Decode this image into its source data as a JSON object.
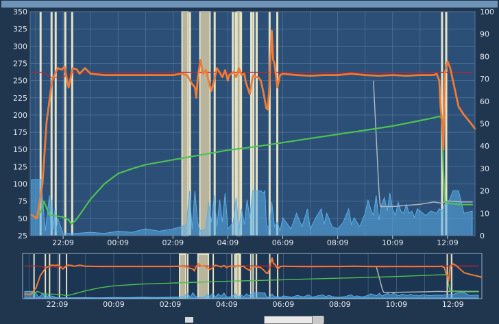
{
  "chart_data": [
    {
      "type": "line",
      "name": "main-chart",
      "left_ticks": [
        "25",
        "50",
        "75",
        "100",
        "125",
        "150",
        "175",
        "200",
        "225",
        "250",
        "275",
        "300",
        "325",
        "350"
      ],
      "right_ticks": [
        "0",
        "10",
        "20",
        "30",
        "40",
        "50",
        "60",
        "70",
        "80",
        "90",
        "100"
      ],
      "x_ticks": [
        "22:09",
        "00:09",
        "02:09",
        "04:09",
        "06:09",
        "08:09",
        "10:09",
        "12:09"
      ],
      "ylim_left": [
        25,
        350
      ],
      "ylim_right": [
        0,
        100
      ],
      "xlim": [
        -0.2,
        16.0
      ],
      "grid": true,
      "colors": {
        "background": "#2b4f77",
        "grid": "#8aa2bc",
        "glucose_orange": "#ef7b35",
        "glucose_green": "#4fc24f",
        "setpoint_red": "#b8252f",
        "area_blue": "#5aaee8",
        "grey_line": "#aeb6bf",
        "bands": "#e6e2c4"
      },
      "series": [
        {
          "key": "orange",
          "axis": "left",
          "x": [
            -0.15,
            0.05,
            0.25,
            0.4,
            0.6,
            0.8,
            0.95,
            1.05,
            1.2,
            1.35,
            1.5,
            1.6,
            1.8,
            2,
            2.5,
            3,
            4,
            4.5,
            5,
            5.3,
            5.5,
            5.55,
            5.7,
            5.8,
            5.85,
            5.9,
            6,
            6.1,
            6.2,
            6.3,
            6.4,
            6.5,
            6.6,
            6.7,
            6.8,
            6.9,
            7,
            7.05,
            7.2,
            7.3,
            7.4,
            7.5,
            7.6,
            7.65,
            7.7,
            7.8,
            7.9,
            7.95,
            8,
            8.1,
            8.2,
            8.3,
            8.4,
            8.45,
            8.5,
            8.55,
            8.6,
            8.65,
            8.7,
            8.8,
            8.9,
            9,
            9.5,
            10,
            10.5,
            11,
            11.5,
            12,
            12.5,
            13,
            13.5,
            14,
            14.3,
            14.5,
            14.6,
            14.7,
            14.75,
            14.8,
            14.85,
            14.9,
            15,
            15.1,
            15.25,
            15.4,
            15.6,
            15.85,
            16
          ],
          "y": [
            55,
            50,
            100,
            190,
            250,
            268,
            266,
            270,
            240,
            268,
            266,
            260,
            268,
            260,
            258,
            258,
            258,
            258,
            258,
            260,
            258,
            255,
            245,
            240,
            225,
            252,
            280,
            260,
            265,
            250,
            235,
            250,
            268,
            262,
            255,
            265,
            250,
            258,
            262,
            255,
            268,
            258,
            260,
            248,
            242,
            230,
            255,
            258,
            255,
            255,
            250,
            232,
            210,
            208,
            232,
            282,
            322,
            280,
            275,
            240,
            258,
            260,
            258,
            257,
            258,
            258,
            260,
            258,
            257,
            258,
            257,
            258,
            258,
            258,
            260,
            250,
            210,
            190,
            150,
            260,
            278,
            268,
            240,
            212,
            200,
            188,
            180
          ]
        },
        {
          "key": "green",
          "axis": "left",
          "x": [
            -0.15,
            0,
            0.2,
            0.3,
            0.5,
            1,
            1.2,
            1.3,
            1.45,
            1.6,
            2,
            2.5,
            3,
            3.5,
            4,
            5,
            6,
            7,
            8,
            9,
            10,
            11,
            12,
            13,
            14,
            14.5,
            14.7,
            14.8,
            14.85,
            14.9,
            15,
            15.5,
            15.9
          ],
          "y": [
            55,
            52,
            60,
            75,
            55,
            52,
            48,
            42,
            47,
            55,
            78,
            100,
            115,
            122,
            128,
            135,
            142,
            149,
            154,
            160,
            166,
            172,
            178,
            184,
            192,
            196,
            198,
            195,
            120,
            75,
            72,
            70,
            70
          ]
        },
        {
          "key": "setpoint",
          "axis": "left",
          "x": [
            -0.15,
            0.3,
            0.5,
            1,
            1.3,
            15.9
          ],
          "y": [
            262,
            262,
            255,
            255,
            262,
            262
          ]
        },
        {
          "key": "grey",
          "axis": "right",
          "x": [
            12.3,
            12.42,
            12.5,
            12.55,
            13,
            13.5,
            14,
            14.5,
            14.8,
            15,
            15.5,
            15.9
          ],
          "y": [
            69,
            40,
            20,
            13,
            13,
            13.5,
            14,
            15,
            14.5,
            15.5,
            15,
            15
          ]
        },
        {
          "key": "blue",
          "axis": "right",
          "x": [
            -0.15,
            0,
            0.1,
            0.2,
            0.35,
            0.5,
            0.55,
            0.6,
            0.65,
            0.7,
            0.75,
            0.8,
            1,
            1.5,
            2,
            2.5,
            3,
            3.5,
            4,
            4.5,
            5,
            5.3,
            5.5,
            5.6,
            5.7,
            5.8,
            5.9,
            6,
            6.2,
            6.3,
            6.4,
            6.5,
            6.6,
            6.7,
            6.8,
            6.9,
            7,
            7.2,
            7.3,
            7.4,
            7.5,
            7.6,
            7.7,
            7.8,
            7.9,
            8,
            8.1,
            8.2,
            8.3,
            8.35,
            8.4,
            8.5,
            8.6,
            8.7,
            8.8,
            8.9,
            9,
            9.3,
            9.5,
            9.7,
            9.9,
            10,
            10.2,
            10.4,
            10.5,
            10.6,
            10.8,
            11,
            11.2,
            11.4,
            11.5,
            11.6,
            11.8,
            12,
            12.1,
            12.2,
            12.3,
            12.4,
            12.5,
            12.6,
            12.7,
            12.8,
            12.9,
            13,
            13.1,
            13.2,
            13.3,
            13.4,
            13.5,
            13.6,
            13.7,
            13.8,
            13.9,
            14,
            14.2,
            14.4,
            14.6,
            14.7,
            14.8,
            14.9,
            15,
            15.2,
            15.4,
            15.6,
            15.9
          ],
          "y": [
            25,
            25,
            25,
            25,
            2,
            18,
            2,
            16,
            3,
            12,
            2,
            8,
            1,
            1,
            1.5,
            1,
            2,
            1.5,
            3,
            2,
            3,
            4,
            5,
            20,
            3,
            20,
            6,
            2,
            3,
            15,
            6,
            18,
            4,
            16,
            6,
            19,
            3,
            6,
            17,
            2,
            12,
            5,
            16,
            8,
            20,
            20,
            20,
            20,
            19,
            20,
            5,
            3,
            15,
            4,
            6,
            2,
            8,
            3,
            10,
            4,
            12,
            3,
            8,
            12,
            5,
            10,
            4,
            3,
            6,
            12,
            5,
            8,
            4,
            10,
            16,
            12,
            9,
            18,
            7,
            14,
            17,
            11,
            19,
            12,
            9,
            15,
            11,
            10,
            14,
            10,
            11,
            8,
            12,
            11,
            9,
            11,
            10,
            12,
            11,
            14,
            14,
            20,
            20,
            10,
            11
          ]
        }
      ],
      "bands": [
        {
          "type": "line",
          "x": 0.18
        },
        {
          "type": "line",
          "x": 0.58
        },
        {
          "type": "line",
          "x": 0.73
        },
        {
          "type": "line",
          "x": 1.08
        },
        {
          "type": "line",
          "x": 1.33
        },
        {
          "type": "fill",
          "x0": 5.33,
          "x1": 5.55
        },
        {
          "type": "line",
          "x": 5.62
        },
        {
          "type": "fill",
          "x0": 5.98,
          "x1": 6.35
        },
        {
          "type": "line",
          "x": 6.52
        },
        {
          "type": "line",
          "x": 7.18
        },
        {
          "type": "line",
          "x": 7.28
        },
        {
          "type": "fill",
          "x0": 7.33,
          "x1": 7.45
        },
        {
          "type": "line",
          "x": 7.48
        },
        {
          "type": "line",
          "x": 7.85
        },
        {
          "type": "line",
          "x": 7.93
        },
        {
          "type": "line",
          "x": 8.05
        },
        {
          "type": "line",
          "x": 8.52
        },
        {
          "type": "line",
          "x": 8.8
        },
        {
          "type": "line",
          "x": 14.8
        },
        {
          "type": "line",
          "x": 14.95
        }
      ]
    },
    {
      "type": "line",
      "name": "navigator-chart",
      "x_ticks": [
        "22:09",
        "00:09",
        "02:09",
        "04:09",
        "06:09",
        "08:09",
        "10:09",
        "12:09"
      ],
      "xlim": [
        -0.2,
        16.0
      ],
      "ylim": [
        25,
        350
      ],
      "series_refs": [
        "orange",
        "green",
        "setpoint",
        "grey",
        "blue"
      ]
    }
  ]
}
